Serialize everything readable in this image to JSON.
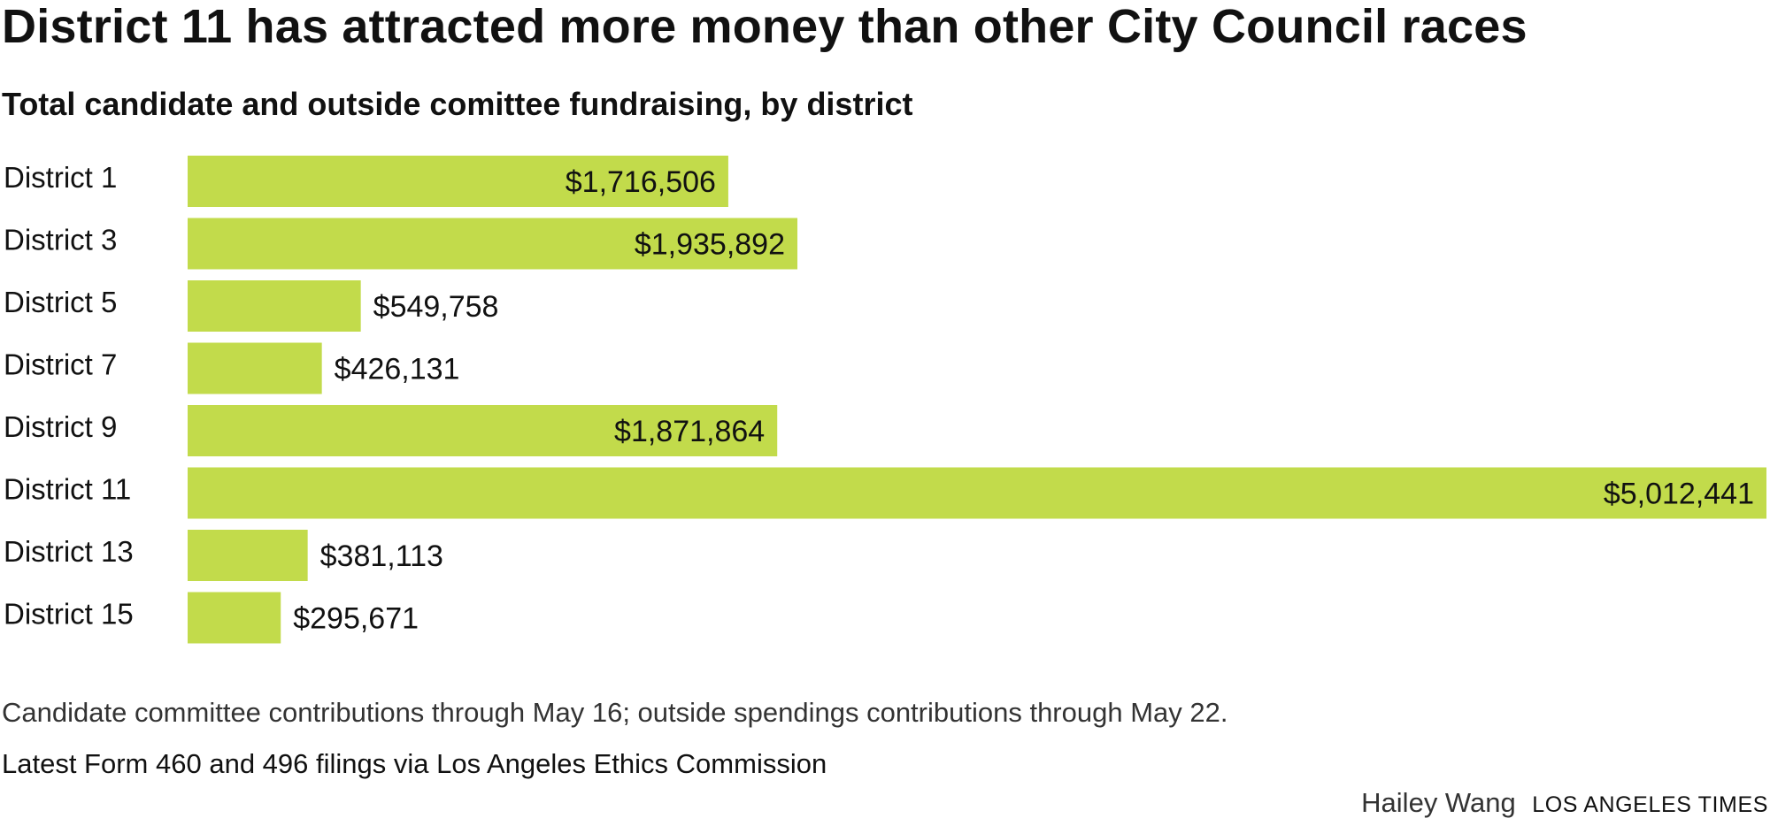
{
  "title": "District 11 has attracted more money than other City Council races",
  "subtitle": "Total candidate and outside comittee fundraising, by district",
  "chart_data": {
    "type": "bar",
    "orientation": "horizontal",
    "categories": [
      "District 1",
      "District 3",
      "District 5",
      "District 7",
      "District 9",
      "District 11",
      "District 13",
      "District 15"
    ],
    "values": [
      1716506,
      1935892,
      549758,
      426131,
      1871864,
      5012441,
      381113,
      295671
    ],
    "value_labels": [
      "$1,716,506",
      "$1,935,892",
      "$549,758",
      "$426,131",
      "$1,871,864",
      "$5,012,441",
      "$381,113",
      "$295,671"
    ],
    "xlim": [
      0,
      5012441
    ],
    "bar_color": "#c2db4b",
    "grid": false,
    "legend": "none"
  },
  "footer": {
    "note": "Candidate committee contributions through May 16; outside spendings contributions through May 22.",
    "source": "Latest Form 460 and 496 filings via Los Angeles Ethics Commission",
    "author": "Hailey Wang",
    "organization": "LOS ANGELES TIMES"
  }
}
